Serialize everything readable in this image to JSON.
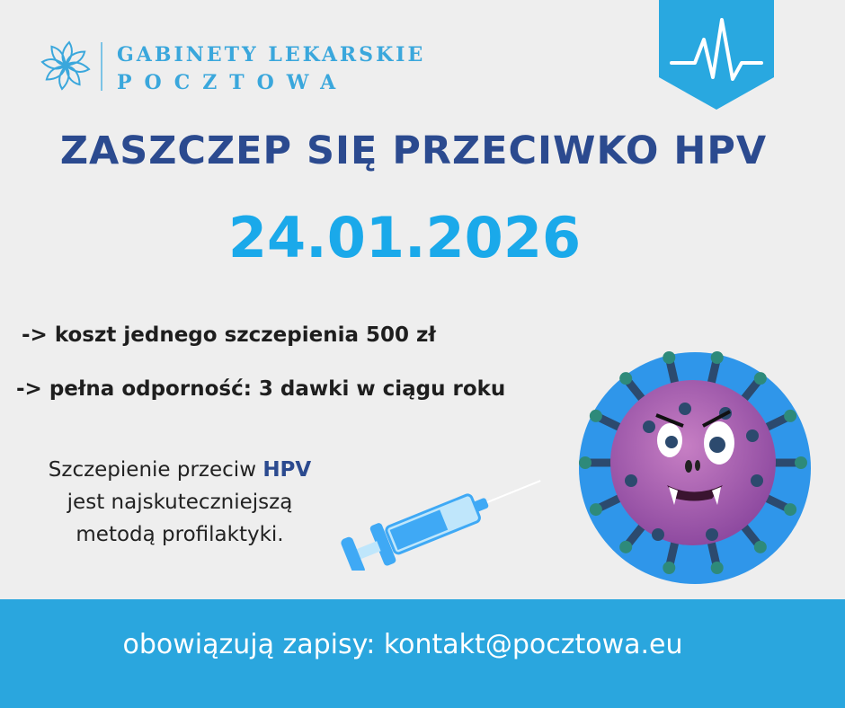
{
  "logo": {
    "line1": "GABINETY LEKARSKIE",
    "line2": "POCZTOWA"
  },
  "title": "ZASZCZEP SIĘ PRZECIWKO HPV",
  "date": "24.01.2026",
  "bullets": [
    "-> koszt jednego szczepienia 500 zł",
    "-> pełna odporność: 3 dawki w ciągu roku"
  ],
  "paragraph": {
    "part1": "Szczepienie przeciw ",
    "highlight": "HPV",
    "part2": "jest najskuteczniejszą",
    "part3": "metodą profilaktyki."
  },
  "footer": "obowiązują zapisy: kontakt@pocztowa.eu",
  "colors": {
    "background": "#eeeeee",
    "accent": "#2aa6de",
    "title": "#2b4a8f",
    "date": "#1aa9ea"
  }
}
